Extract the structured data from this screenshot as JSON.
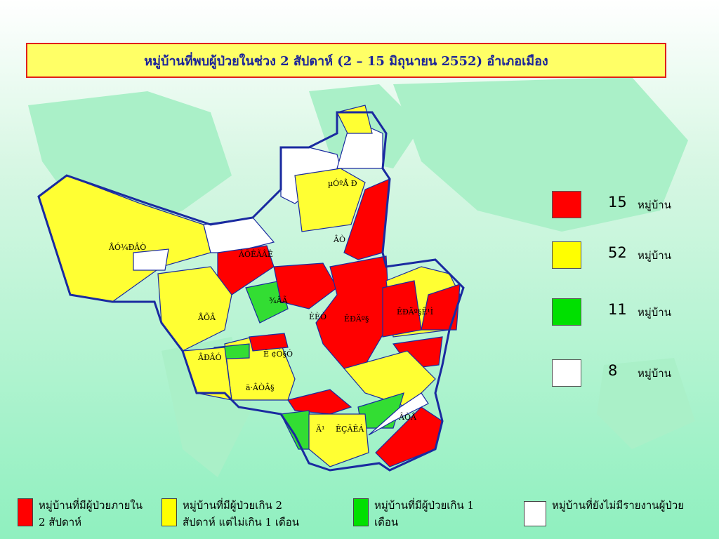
{
  "title": "หมู่บ้านที่พบผู้ป่วยในช่วง 2 สัปดาห์ (2 – 15 มิถุนายน 2552)   อำเภอเมือง",
  "map_labels": [
    "µÓºÅ Ð",
    "ÂÒ",
    "ÅÓ¼ÐÂÒ",
    "ÂÕÊÃÂÊ",
    "¾ÂÃ",
    "ÅÕÂ",
    "ÈÈÒ",
    "ÊÐÄº§",
    "ÊÐÄº§Ê¹Ì",
    "ÂÐÂÓ",
    "Ê ¢Ó§Ó",
    "ä·ÂÒÂ§",
    "ÂÒÅ",
    "Ä¹",
    "ÊÇÃÊÁ"
  ],
  "legend": [
    {
      "count": 15,
      "unit": "หมู่บ้าน",
      "color": "#ff0000"
    },
    {
      "count": 52,
      "unit": "หมู่บ้าน",
      "color": "#ffff00"
    },
    {
      "count": 11,
      "unit": "หมู่บ้าน",
      "color": "#00e000"
    },
    {
      "count": 8,
      "unit": "หมู่บ้าน",
      "color": "#ffffff"
    }
  ],
  "key": [
    {
      "text": "หมู่บ้านที่มีผู้ป่วยภายใน 2 สัปดาห์",
      "color": "#ff0000"
    },
    {
      "text": "หมู่บ้านที่มีผู้ป่วยเกิน  2 สัปดาห์ แต่ไม่เกิน 1 เดือน",
      "color": "#ffff00"
    },
    {
      "text": "หมู่บ้านที่มีผู้ป่วยเกิน 1 เดือน",
      "color": "#00e000"
    },
    {
      "text": "หมู่บ้านที่ยังไม่มีรายงานผู้ป่วย",
      "color": "#ffffff"
    }
  ]
}
